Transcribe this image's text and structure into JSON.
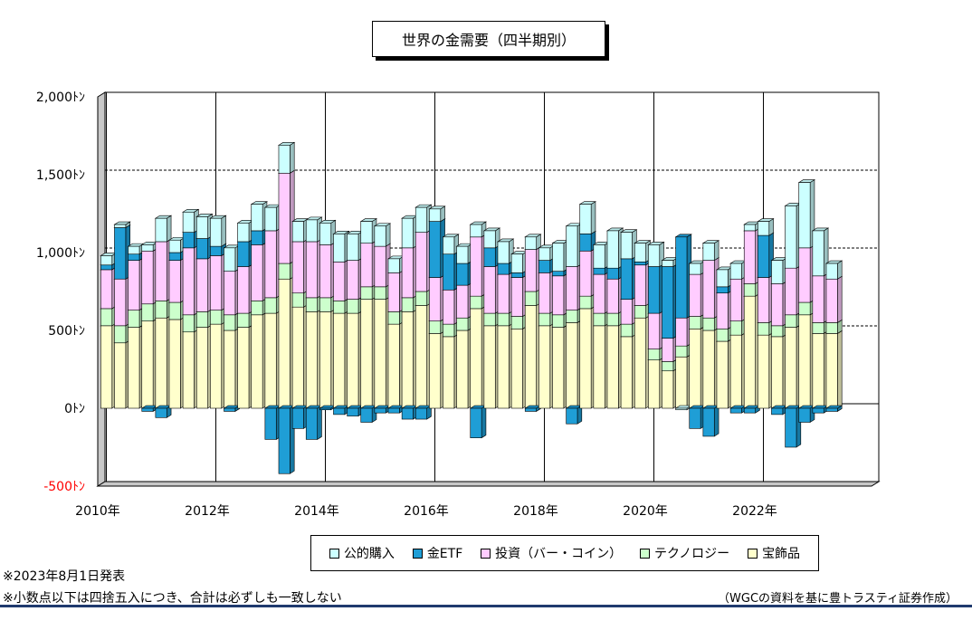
{
  "title": "世界の金需要（四半期別）",
  "notes": [
    "※2023年8月1日発表",
    "※小数点以下は四捨五入につき、合計は必ずしも一致しない"
  ],
  "source": "（WGCの資料を基に豊トラスティ証券作成）",
  "chart_data": {
    "type": "bar",
    "stacked": true,
    "ylim": [
      -500,
      2000
    ],
    "yticks": [
      -500,
      0,
      500,
      1000,
      1500,
      2000
    ],
    "ytick_labels": [
      "-500ﾄﾝ",
      "0ﾄﾝ",
      "500ﾄﾝ",
      "1,000ﾄﾝ",
      "1,500ﾄﾝ",
      "2,000ﾄﾝ"
    ],
    "ytick_colors": [
      "#ff0000",
      "#000000",
      "#000000",
      "#000000",
      "#000000",
      "#000000"
    ],
    "xtick_labels": [
      "2010年",
      "2012年",
      "2014年",
      "2016年",
      "2018年",
      "2020年",
      "2022年"
    ],
    "categories": [
      "2010Q1",
      "2010Q2",
      "2010Q3",
      "2010Q4",
      "2011Q1",
      "2011Q2",
      "2011Q3",
      "2011Q4",
      "2012Q1",
      "2012Q2",
      "2012Q3",
      "2012Q4",
      "2013Q1",
      "2013Q2",
      "2013Q3",
      "2013Q4",
      "2014Q1",
      "2014Q2",
      "2014Q3",
      "2014Q4",
      "2015Q1",
      "2015Q2",
      "2015Q3",
      "2015Q4",
      "2016Q1",
      "2016Q2",
      "2016Q3",
      "2016Q4",
      "2017Q1",
      "2017Q2",
      "2017Q3",
      "2017Q4",
      "2018Q1",
      "2018Q2",
      "2018Q3",
      "2018Q4",
      "2019Q1",
      "2019Q2",
      "2019Q3",
      "2019Q4",
      "2020Q1",
      "2020Q2",
      "2020Q3",
      "2020Q4",
      "2021Q1",
      "2021Q2",
      "2021Q3",
      "2021Q4",
      "2022Q1",
      "2022Q2",
      "2022Q3",
      "2022Q4",
      "2023Q1",
      "2023Q2"
    ],
    "series": [
      {
        "name": "宝飾品",
        "color": "#ffffcc",
        "values": [
          530,
          420,
          520,
          560,
          580,
          570,
          490,
          520,
          540,
          500,
          520,
          600,
          610,
          830,
          650,
          620,
          620,
          610,
          610,
          700,
          700,
          540,
          620,
          660,
          480,
          460,
          500,
          640,
          530,
          530,
          510,
          660,
          530,
          520,
          550,
          640,
          530,
          530,
          460,
          580,
          310,
          240,
          330,
          510,
          500,
          430,
          470,
          720,
          470,
          460,
          520,
          600,
          480,
          480
        ]
      },
      {
        "name": "テクノロジー",
        "color": "#ccffcc",
        "values": [
          110,
          110,
          110,
          110,
          110,
          110,
          110,
          100,
          90,
          100,
          90,
          90,
          100,
          100,
          90,
          90,
          90,
          80,
          90,
          80,
          80,
          80,
          90,
          90,
          80,
          80,
          80,
          80,
          80,
          80,
          80,
          90,
          80,
          80,
          80,
          80,
          80,
          80,
          80,
          80,
          70,
          60,
          70,
          80,
          80,
          80,
          90,
          80,
          80,
          70,
          80,
          80,
          70,
          70
        ]
      },
      {
        "name": "投資（バー・コイン）",
        "color": "#ffccff",
        "values": [
          250,
          300,
          320,
          340,
          380,
          270,
          430,
          340,
          350,
          280,
          300,
          360,
          430,
          580,
          330,
          360,
          340,
          250,
          250,
          280,
          260,
          250,
          320,
          380,
          280,
          220,
          210,
          380,
          300,
          250,
          250,
          270,
          260,
          250,
          280,
          290,
          250,
          220,
          160,
          260,
          230,
          150,
          180,
          270,
          370,
          230,
          270,
          340,
          290,
          270,
          300,
          350,
          300,
          280
        ]
      },
      {
        "name": "金ETF",
        "color": "#1f9ed6",
        "values": [
          30,
          330,
          40,
          -20,
          -60,
          50,
          100,
          130,
          60,
          -20,
          160,
          90,
          -200,
          -420,
          -130,
          -200,
          -10,
          -40,
          -50,
          -90,
          -30,
          -30,
          -70,
          -70,
          360,
          230,
          140,
          -190,
          120,
          70,
          30,
          -20,
          80,
          30,
          -100,
          110,
          40,
          70,
          260,
          20,
          300,
          460,
          520,
          -130,
          -180,
          40,
          -30,
          -30,
          270,
          -40,
          -250,
          -90,
          -30,
          -20
        ]
      },
      {
        "name": "公的購入",
        "color": "#ccffff",
        "values": [
          60,
          20,
          50,
          40,
          150,
          80,
          130,
          140,
          180,
          150,
          120,
          170,
          150,
          180,
          130,
          140,
          140,
          180,
          170,
          140,
          130,
          90,
          190,
          160,
          80,
          110,
          110,
          80,
          110,
          140,
          120,
          80,
          80,
          180,
          260,
          190,
          150,
          240,
          170,
          120,
          140,
          40,
          -10,
          70,
          110,
          110,
          100,
          40,
          90,
          150,
          400,
          420,
          290,
          100
        ]
      }
    ]
  }
}
